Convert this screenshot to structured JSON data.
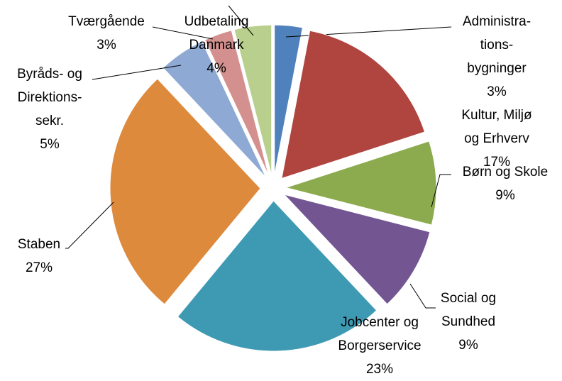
{
  "chart_data": {
    "type": "pie",
    "categories": [
      "Administra-\ntions-\nbygninger",
      "Kultur, Miljø\nog Erhverv",
      "Børn og Skole",
      "Social og\nSundhed",
      "Jobcenter og\nBorgerservice",
      "Staben",
      "Byråds- og\nDirektions-\nsekr.",
      "Tværgående",
      "Udbetaling\nDanmark"
    ],
    "values": [
      3,
      17,
      9,
      9,
      23,
      27,
      5,
      3,
      4
    ],
    "value_labels": [
      "3%",
      "17%",
      "9%",
      "9%",
      "23%",
      "27%",
      "5%",
      "3%",
      "4%"
    ],
    "colors": [
      "#4f81bd",
      "#b0443f",
      "#8cab4f",
      "#735592",
      "#3e9ab3",
      "#dd8a3d",
      "#8ea9d3",
      "#d4908e",
      "#b8cf8e"
    ]
  }
}
